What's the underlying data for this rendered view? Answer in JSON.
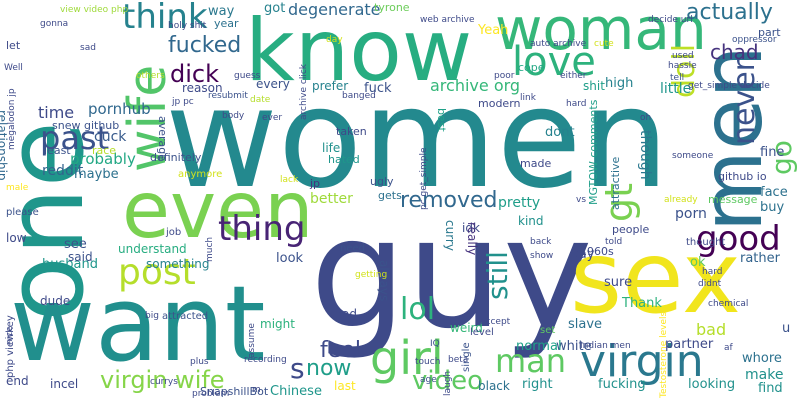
{
  "words": [
    {
      "text": "women",
      "color": "#23898e"
    },
    {
      "text": "guy",
      "color": "#3e4a89"
    },
    {
      "text": "one",
      "color": "#1f968b"
    },
    {
      "text": "want",
      "color": "#218f8d"
    },
    {
      "text": "know",
      "color": "#27ad81"
    },
    {
      "text": "sex",
      "color": "#f1e51d"
    },
    {
      "text": "men",
      "color": "#2c718e"
    },
    {
      "text": "even",
      "color": "#7ad151"
    },
    {
      "text": "woman",
      "color": "#35b779"
    },
    {
      "text": "wife",
      "color": "#52c569"
    },
    {
      "text": "girl",
      "color": "#5ec962"
    },
    {
      "text": "virgin",
      "color": "#2a788e"
    },
    {
      "text": "post",
      "color": "#b5de2b"
    },
    {
      "text": "thing",
      "color": "#482475"
    },
    {
      "text": "good",
      "color": "#440154"
    },
    {
      "text": "love",
      "color": "#2db27d"
    },
    {
      "text": "think",
      "color": "#26828e"
    },
    {
      "text": "past",
      "color": "#3b528b"
    },
    {
      "text": "never",
      "color": "#3b528b"
    },
    {
      "text": "man",
      "color": "#5ec962"
    },
    {
      "text": "virgin wife",
      "color": "#86d549"
    },
    {
      "text": "dick",
      "color": "#440154"
    },
    {
      "text": "fucked",
      "color": "#31688e"
    },
    {
      "text": "actually",
      "color": "#2c718e"
    },
    {
      "text": "degenerate",
      "color": "#31688e"
    },
    {
      "text": "removed",
      "color": "#31688e"
    },
    {
      "text": "lol",
      "color": "#2db27d"
    },
    {
      "text": "gt",
      "color": "#7ad151"
    },
    {
      "text": "go",
      "color": "#5ec962"
    },
    {
      "text": "video",
      "color": "#5ec962"
    },
    {
      "text": "feel",
      "color": "#3e4a89"
    },
    {
      "text": "now",
      "color": "#1f9e89"
    },
    {
      "text": "s",
      "color": "#3e4a89"
    },
    {
      "text": "doll",
      "color": "#bddf26"
    },
    {
      "text": "still",
      "color": "#21918c"
    },
    {
      "text": "archive org",
      "color": "#35b779"
    },
    {
      "text": "chad",
      "color": "#46337e"
    },
    {
      "text": "pornhub",
      "color": "#31688e"
    },
    {
      "text": "time",
      "color": "#3e4a89"
    },
    {
      "text": "probably",
      "color": "#22a884"
    },
    {
      "text": "cuck",
      "color": "#375a8c"
    },
    {
      "text": "way",
      "color": "#2a788e"
    },
    {
      "text": "got",
      "color": "#26828e"
    },
    {
      "text": "Yeah",
      "color": "#fde725"
    },
    {
      "text": "fuck",
      "color": "#3b528b"
    },
    {
      "text": "dont",
      "color": "#26828e"
    },
    {
      "text": "shit",
      "color": "#1f9e89"
    },
    {
      "text": "high",
      "color": "#26828e"
    },
    {
      "text": "little",
      "color": "#1f968b"
    },
    {
      "text": "reddit",
      "color": "#33638d"
    },
    {
      "text": "maybe",
      "color": "#2c718e"
    },
    {
      "text": "pretty",
      "color": "#1f9e89"
    },
    {
      "text": "better",
      "color": "#9fda3a"
    },
    {
      "text": "though",
      "color": "#2a788e"
    },
    {
      "text": "porn",
      "color": "#3b528b"
    },
    {
      "text": "Thank",
      "color": "#2db27d"
    },
    {
      "text": "ok",
      "color": "#5ec962"
    },
    {
      "text": "rather",
      "color": "#33638d"
    },
    {
      "text": "face",
      "color": "#2c718e"
    },
    {
      "text": "buy",
      "color": "#2c718e"
    },
    {
      "text": "fine",
      "color": "#3b528b"
    },
    {
      "text": "make",
      "color": "#21918c"
    },
    {
      "text": "find",
      "color": "#21918c"
    },
    {
      "text": "whore",
      "color": "#2c718e"
    },
    {
      "text": "u",
      "color": "#3b528b"
    },
    {
      "text": "bad",
      "color": "#b5de2b"
    },
    {
      "text": "sure",
      "color": "#3e4a89"
    },
    {
      "text": "say",
      "color": "#3e4a89"
    },
    {
      "text": "slave",
      "color": "#2c718e"
    },
    {
      "text": "partner",
      "color": "#3e4a89"
    },
    {
      "text": "white",
      "color": "#3b528b"
    },
    {
      "text": "normal",
      "color": "#1fa188"
    },
    {
      "text": "right",
      "color": "#21918c"
    },
    {
      "text": "fucking",
      "color": "#21918c"
    },
    {
      "text": "looking",
      "color": "#21918c"
    },
    {
      "text": "black",
      "color": "#2c718e"
    },
    {
      "text": "last",
      "color": "#fde725"
    },
    {
      "text": "Chinese",
      "color": "#1f968b"
    },
    {
      "text": "end",
      "color": "#3e4a89"
    },
    {
      "text": "incel",
      "color": "#3e4a89"
    },
    {
      "text": "husband",
      "color": "#1f968b"
    },
    {
      "text": "dude",
      "color": "#3e4a89"
    },
    {
      "text": "see",
      "color": "#3b528b"
    },
    {
      "text": "said",
      "color": "#3b528b"
    },
    {
      "text": "understand",
      "color": "#27ad81"
    },
    {
      "text": "something",
      "color": "#26828e"
    },
    {
      "text": "might",
      "color": "#2db27d"
    },
    {
      "text": "look",
      "color": "#3b528b"
    },
    {
      "text": "read",
      "color": "#3e4a89"
    },
    {
      "text": "weird",
      "color": "#35b779"
    },
    {
      "text": "curry",
      "color": "#2a788e"
    },
    {
      "text": "idk",
      "color": "#3e4a89"
    },
    {
      "text": "kind",
      "color": "#21918c"
    },
    {
      "text": "really",
      "color": "#46337e"
    },
    {
      "text": "always",
      "color": "#3b528b"
    },
    {
      "text": "every",
      "color": "#3b528b"
    },
    {
      "text": "reason",
      "color": "#3e4a89"
    },
    {
      "text": "prefer",
      "color": "#26828e"
    },
    {
      "text": "life",
      "color": "#21918c"
    },
    {
      "text": "relationship",
      "color": "#31688e"
    },
    {
      "text": "average",
      "color": "#3b528b"
    },
    {
      "text": "let",
      "color": "#3e4a89"
    },
    {
      "text": "year",
      "color": "#2c718e"
    },
    {
      "text": "tyrone",
      "color": "#6ccd5a"
    },
    {
      "text": "MGTOW comments",
      "color": "#1f9e89"
    },
    {
      "text": "attractive",
      "color": "#2c718e"
    },
    {
      "text": "best",
      "color": "#1fa188"
    },
    {
      "text": "people",
      "color": "#3e4a89"
    },
    {
      "text": "1960s",
      "color": "#3e4a89"
    },
    {
      "text": "github io",
      "color": "#3e4a89"
    },
    {
      "text": "message",
      "color": "#5ec962"
    },
    {
      "text": "part",
      "color": "#3b528b"
    },
    {
      "text": "cope",
      "color": "#22a884"
    },
    {
      "text": "modern",
      "color": "#3e4a89"
    },
    {
      "text": "taken",
      "color": "#3e4a89"
    },
    {
      "text": "hated",
      "color": "#1f968b"
    },
    {
      "text": "made",
      "color": "#3e4a89"
    },
    {
      "text": "ugly",
      "color": "#3b528b"
    },
    {
      "text": "gets",
      "color": "#2c718e"
    },
    {
      "text": "jp",
      "color": "#46337e"
    },
    {
      "text": "snew github",
      "color": "#3b528b"
    },
    {
      "text": "race",
      "color": "#b5de2b"
    },
    {
      "text": "least",
      "color": "#3b528b"
    },
    {
      "text": "definitely",
      "color": "#3b528b"
    },
    {
      "text": "anymore",
      "color": "#d2e21b"
    },
    {
      "text": "please",
      "color": "#3b528b"
    },
    {
      "text": "low",
      "color": "#3e4a89"
    },
    {
      "text": "job",
      "color": "#3e4a89"
    },
    {
      "text": "need",
      "color": "#3b528b"
    },
    {
      "text": "thought",
      "color": "#3e4a89"
    },
    {
      "text": "level",
      "color": "#3e4a89"
    },
    {
      "text": "single",
      "color": "#3b528b"
    },
    {
      "text": "set",
      "color": "#5ec962"
    },
    {
      "text": "php viewkey",
      "color": "#3e4a89"
    },
    {
      "text": "SnapshillBot",
      "color": "#3b528b"
    },
    {
      "text": "Indian men",
      "color": "#3e4a89"
    },
    {
      "text": "Testosterone levels",
      "color": "#fde725"
    },
    {
      "text": "attracted",
      "color": "#3b528b"
    },
    {
      "text": "view video php",
      "color": "#9fda3a"
    },
    {
      "text": "holy shit",
      "color": "#3e4a89"
    },
    {
      "text": "web archive",
      "color": "#3e4a89"
    },
    {
      "text": "auto archive",
      "color": "#3e4a89"
    },
    {
      "text": "decide url",
      "color": "#3e4a89"
    },
    {
      "text": "oppressor",
      "color": "#3b528b"
    },
    {
      "text": "megalodon jp",
      "color": "#3e4a89"
    },
    {
      "text": "resubmit",
      "color": "#3b528b"
    },
    {
      "text": "jp pc",
      "color": "#3e4a89"
    },
    {
      "text": "pc get_simple",
      "color": "#3e4a89"
    },
    {
      "text": "get_simple decide",
      "color": "#3e4a89"
    },
    {
      "text": "archive click",
      "color": "#3e4a89"
    },
    {
      "text": "gonna",
      "color": "#3e4a89"
    },
    {
      "text": "recording",
      "color": "#3e4a89"
    },
    {
      "text": "IQ",
      "color": "#3b528b"
    },
    {
      "text": "beta",
      "color": "#3e4a89"
    },
    {
      "text": "plus",
      "color": "#3e4a89"
    },
    {
      "text": "currys",
      "color": "#3e4a89"
    },
    {
      "text": "nice",
      "color": "#3e4a89"
    },
    {
      "text": "assume",
      "color": "#3e4a89"
    },
    {
      "text": "tell",
      "color": "#3b528b"
    },
    {
      "text": "already",
      "color": "#d2e21b"
    },
    {
      "text": "someone",
      "color": "#3e4a89"
    },
    {
      "text": "af",
      "color": "#3e4a89"
    },
    {
      "text": "male",
      "color": "#fde725"
    },
    {
      "text": "lack",
      "color": "#d2e21b"
    },
    {
      "text": "day",
      "color": "#d2e21b"
    },
    {
      "text": "getting",
      "color": "#d2e21b"
    },
    {
      "text": "m",
      "color": "#3e4a89"
    },
    {
      "text": "age",
      "color": "#3b528b"
    },
    {
      "text": "told",
      "color": "#3e4a89"
    },
    {
      "text": "back",
      "color": "#3e4a89"
    },
    {
      "text": "hard",
      "color": "#3e4a89"
    },
    {
      "text": "either",
      "color": "#3e4a89"
    },
    {
      "text": "much",
      "color": "#3e4a89"
    },
    {
      "text": "date",
      "color": "#b5de2b"
    },
    {
      "text": "others",
      "color": "#b5de2b"
    },
    {
      "text": "body",
      "color": "#3e4a89"
    },
    {
      "text": "ever",
      "color": "#3e4a89"
    },
    {
      "text": "chemical",
      "color": "#3e4a89"
    },
    {
      "text": "vs",
      "color": "#3e4a89"
    },
    {
      "text": "link",
      "color": "#3e4a89"
    },
    {
      "text": "laugh",
      "color": "#3e4a89"
    },
    {
      "text": "Well",
      "color": "#3e4a89"
    },
    {
      "text": "sad",
      "color": "#3e4a89"
    },
    {
      "text": "guess",
      "color": "#3e4a89"
    },
    {
      "text": "banged",
      "color": "#3e4a89"
    },
    {
      "text": "used",
      "color": "#3e4a89"
    },
    {
      "text": "hassle",
      "color": "#3e4a89"
    },
    {
      "text": "poor",
      "color": "#3e4a89"
    },
    {
      "text": "big",
      "color": "#3e4a89"
    },
    {
      "text": "didnt",
      "color": "#3e4a89"
    },
    {
      "text": "show",
      "color": "#3e4a89"
    },
    {
      "text": "accept",
      "color": "#3e4a89"
    },
    {
      "text": "touch",
      "color": "#3e4a89"
    },
    {
      "text": "problem",
      "color": "#3e4a89"
    },
    {
      "text": "oh",
      "color": "#3e4a89"
    },
    {
      "text": "hard",
      "color": "#3e4a89"
    },
    {
      "text": "cute",
      "color": "#d2e21b"
    }
  ]
}
